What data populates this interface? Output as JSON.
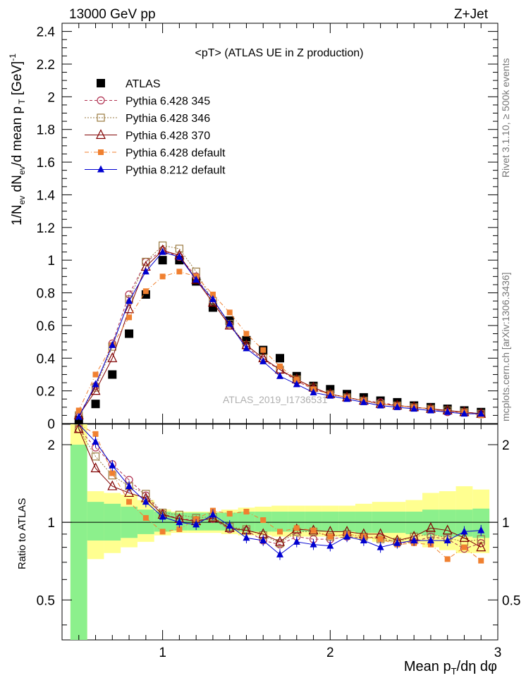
{
  "header": {
    "energy_label": "13000 GeV pp",
    "process_label": "Z+Jet",
    "title": "<pT> (ATLAS UE in Z production)",
    "watermark": "ATLAS_2019_I1736531",
    "right_label_top": "Rivet 3.1.10, ≥ 500k events",
    "right_label_bottom": "mcplots.cern.ch [arXiv:1306.3436]"
  },
  "axes": {
    "main_ylabel": "1/N_ev dN_ev/d mean p_T [GeV]^-1",
    "ratio_ylabel": "Ratio to ATLAS",
    "xlabel": "Mean p_T/dη dφ",
    "x_ticks": [
      "1",
      "2",
      "3"
    ],
    "main_y_ticks": [
      "0",
      "0.2",
      "0.4",
      "0.6",
      "0.8",
      "1",
      "1.2",
      "1.4",
      "1.6",
      "1.8",
      "2",
      "2.2",
      "2.4"
    ],
    "ratio_y_ticks": [
      "0.5",
      "1",
      "2"
    ]
  },
  "colors": {
    "atlas": "#000000",
    "py345": "#b03050",
    "py346": "#9a7a40",
    "py370": "#800000",
    "pydef": "#f08030",
    "py8": "#0000d0",
    "band_inner": "#8cf08c",
    "band_outer": "#ffff90"
  },
  "chart_data": {
    "type": "scatter",
    "title": "<pT> (ATLAS UE in Z production)",
    "xlabel": "Mean p_T/dη dφ",
    "ylabel": "1/N_ev dN_ev/d mean p_T [GeV]^-1",
    "xlim": [
      0.4,
      3.0
    ],
    "ylim": [
      0,
      2.45
    ],
    "ratio_ylim": [
      0.35,
      2.4
    ],
    "ratio_scale": "log",
    "legend_position": "top-left",
    "x": [
      0.5,
      0.6,
      0.7,
      0.8,
      0.9,
      1.0,
      1.1,
      1.2,
      1.3,
      1.4,
      1.5,
      1.6,
      1.7,
      1.8,
      1.9,
      2.0,
      2.1,
      2.2,
      2.3,
      2.4,
      2.5,
      2.6,
      2.7,
      2.8,
      2.9
    ],
    "series": [
      {
        "name": "ATLAS",
        "key": "atlas",
        "marker": "square-filled",
        "values": [
          0.02,
          0.12,
          0.3,
          0.55,
          0.79,
          1.0,
          1.0,
          0.87,
          0.71,
          0.63,
          0.51,
          0.45,
          0.4,
          0.29,
          0.23,
          0.21,
          0.18,
          0.16,
          0.14,
          0.13,
          0.11,
          0.1,
          0.09,
          0.08,
          0.07
        ]
      },
      {
        "name": "Pythia 6.428 345",
        "key": "py345",
        "marker": "circle-open",
        "dash": "4,3",
        "values": [
          0.05,
          0.23,
          0.49,
          0.79,
          0.99,
          1.06,
          1.02,
          0.9,
          0.74,
          0.6,
          0.47,
          0.39,
          0.33,
          0.26,
          0.21,
          0.18,
          0.16,
          0.14,
          0.13,
          0.11,
          0.1,
          0.09,
          0.07,
          0.07,
          0.06
        ]
      },
      {
        "name": "Pythia 6.428 346",
        "key": "py346",
        "marker": "square-open",
        "dash": "2,2",
        "values": [
          0.05,
          0.22,
          0.47,
          0.76,
          0.99,
          1.09,
          1.07,
          0.93,
          0.75,
          0.61,
          0.48,
          0.4,
          0.33,
          0.27,
          0.22,
          0.18,
          0.16,
          0.14,
          0.12,
          0.11,
          0.1,
          0.09,
          0.08,
          0.07,
          0.06
        ]
      },
      {
        "name": "Pythia 6.428 370",
        "key": "py370",
        "marker": "triangle-open",
        "dash": "",
        "values": [
          0.05,
          0.2,
          0.4,
          0.7,
          0.96,
          1.06,
          1.03,
          0.88,
          0.74,
          0.6,
          0.48,
          0.4,
          0.33,
          0.27,
          0.22,
          0.18,
          0.16,
          0.14,
          0.12,
          0.11,
          0.1,
          0.09,
          0.08,
          0.07,
          0.06
        ]
      },
      {
        "name": "Pythia 6.428 default",
        "key": "pydef",
        "marker": "square-filled-small",
        "dash": "6,3,1,3",
        "values": [
          0.08,
          0.3,
          0.48,
          0.65,
          0.81,
          0.9,
          0.93,
          0.9,
          0.79,
          0.68,
          0.55,
          0.45,
          0.35,
          0.27,
          0.21,
          0.18,
          0.16,
          0.14,
          0.12,
          0.11,
          0.1,
          0.09,
          0.07,
          0.07,
          0.05
        ]
      },
      {
        "name": "Pythia 8.212 default",
        "key": "py8",
        "marker": "triangle-filled",
        "dash": "",
        "values": [
          0.04,
          0.24,
          0.48,
          0.75,
          0.93,
          1.05,
          1.02,
          0.88,
          0.76,
          0.61,
          0.46,
          0.38,
          0.29,
          0.24,
          0.19,
          0.17,
          0.15,
          0.13,
          0.11,
          0.1,
          0.09,
          0.08,
          0.07,
          0.06,
          0.06
        ]
      }
    ],
    "ratio": {
      "band_inner": [
        [
          0.5,
          2.0
        ],
        [
          0.6,
          1.2
        ],
        [
          0.7,
          1.18
        ],
        [
          0.8,
          1.15
        ],
        [
          0.9,
          1.12
        ],
        [
          1.0,
          1.1
        ],
        [
          1.1,
          1.09
        ],
        [
          1.2,
          1.09
        ],
        [
          1.3,
          1.09
        ],
        [
          1.4,
          1.09
        ],
        [
          1.5,
          1.1
        ],
        [
          1.6,
          1.1
        ],
        [
          1.7,
          1.1
        ],
        [
          1.8,
          1.1
        ],
        [
          1.9,
          1.1
        ],
        [
          2.0,
          1.1
        ],
        [
          2.1,
          1.1
        ],
        [
          2.2,
          1.1
        ],
        [
          2.3,
          1.1
        ],
        [
          2.4,
          1.1
        ],
        [
          2.5,
          1.1
        ],
        [
          2.6,
          1.12
        ],
        [
          2.7,
          1.12
        ],
        [
          2.8,
          1.12
        ],
        [
          2.9,
          1.13
        ]
      ],
      "band_outer": [
        [
          0.5,
          2.5
        ],
        [
          0.6,
          1.32
        ],
        [
          0.7,
          1.3
        ],
        [
          0.8,
          1.28
        ],
        [
          0.9,
          1.22
        ],
        [
          1.0,
          1.12
        ],
        [
          1.1,
          1.1
        ],
        [
          1.2,
          1.1
        ],
        [
          1.3,
          1.1
        ],
        [
          1.4,
          1.12
        ],
        [
          1.5,
          1.14
        ],
        [
          1.6,
          1.15
        ],
        [
          1.7,
          1.16
        ],
        [
          1.8,
          1.16
        ],
        [
          1.9,
          1.16
        ],
        [
          2.0,
          1.16
        ],
        [
          2.1,
          1.16
        ],
        [
          2.2,
          1.18
        ],
        [
          2.3,
          1.2
        ],
        [
          2.4,
          1.2
        ],
        [
          2.5,
          1.22
        ],
        [
          2.6,
          1.3
        ],
        [
          2.7,
          1.32
        ],
        [
          2.8,
          1.38
        ],
        [
          2.9,
          1.34
        ]
      ],
      "band_inner_low": [
        0.3,
        0.85,
        0.85,
        0.87,
        0.9,
        0.92,
        0.93,
        0.93,
        0.93,
        0.93,
        0.92,
        0.92,
        0.92,
        0.92,
        0.92,
        0.92,
        0.92,
        0.91,
        0.91,
        0.91,
        0.9,
        0.89,
        0.88,
        0.88,
        0.87
      ],
      "band_outer_low": [
        0.3,
        0.72,
        0.76,
        0.8,
        0.84,
        0.89,
        0.91,
        0.91,
        0.91,
        0.9,
        0.89,
        0.89,
        0.88,
        0.88,
        0.88,
        0.88,
        0.87,
        0.86,
        0.84,
        0.84,
        0.83,
        0.8,
        0.78,
        0.76,
        0.76
      ],
      "series": [
        {
          "key": "py345",
          "values": [
            2.3,
            1.95,
            1.68,
            1.46,
            1.27,
            1.08,
            1.03,
            1.02,
            1.03,
            0.94,
            0.93,
            0.85,
            0.82,
            0.88,
            0.86,
            0.86,
            0.88,
            0.87,
            0.88,
            0.83,
            0.84,
            0.88,
            0.86,
            0.79,
            0.83
          ]
        },
        {
          "key": "py346",
          "values": [
            2.3,
            1.8,
            1.52,
            1.38,
            1.29,
            1.09,
            1.07,
            1.04,
            1.05,
            0.96,
            0.94,
            0.89,
            0.83,
            0.92,
            0.92,
            0.88,
            0.9,
            0.88,
            0.86,
            0.84,
            0.88,
            0.9,
            0.87,
            0.84,
            0.86
          ]
        },
        {
          "key": "py370",
          "values": [
            2.3,
            1.62,
            1.38,
            1.3,
            1.24,
            1.07,
            1.03,
            1.01,
            1.04,
            0.95,
            0.93,
            0.9,
            0.84,
            0.94,
            0.93,
            0.92,
            0.92,
            0.9,
            0.9,
            0.85,
            0.88,
            0.95,
            0.93,
            0.87,
            0.8
          ]
        },
        {
          "key": "pydef",
          "values": [
            2.4,
            2.2,
            1.55,
            1.2,
            1.04,
            0.92,
            0.94,
            1.03,
            1.11,
            1.08,
            1.1,
            1.02,
            0.92,
            0.95,
            0.93,
            0.88,
            0.9,
            0.88,
            0.86,
            0.82,
            0.83,
            0.82,
            0.72,
            0.8,
            0.71
          ]
        },
        {
          "key": "py8",
          "values": [
            2.4,
            2.05,
            1.66,
            1.38,
            1.2,
            1.05,
            1.0,
            0.98,
            1.07,
            0.97,
            0.87,
            0.85,
            0.75,
            0.84,
            0.82,
            0.81,
            0.88,
            0.85,
            0.8,
            0.83,
            0.85,
            0.85,
            0.85,
            0.92,
            0.93
          ]
        }
      ]
    }
  }
}
